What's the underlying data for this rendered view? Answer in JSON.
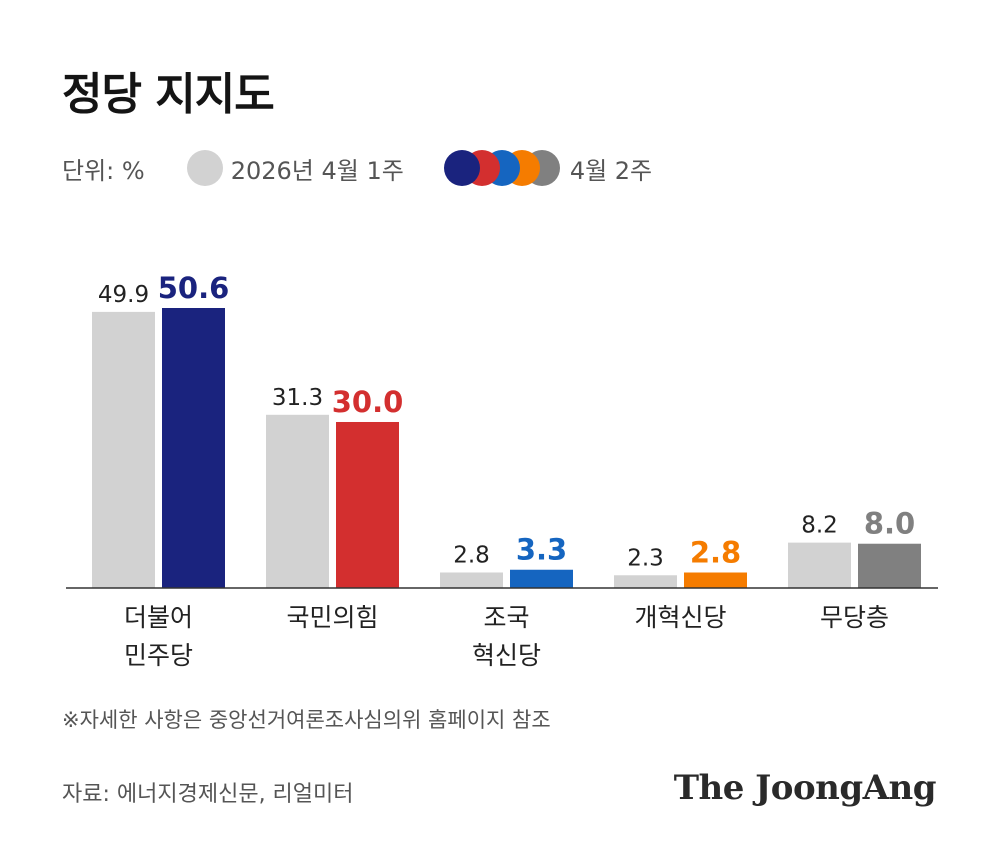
{
  "title": "정당 지지도",
  "legend": {
    "unit": "단위: %",
    "previous_label": "2026년 4월 1주",
    "current_label": "4월 2주",
    "current_dot_colors": [
      "#1a237e",
      "#d32f2f",
      "#1565c0",
      "#f57c00",
      "#808080"
    ]
  },
  "chart_data": {
    "type": "bar",
    "categories": [
      [
        "더불어",
        "민주당"
      ],
      [
        "국민의힘"
      ],
      [
        "조국",
        "혁신당"
      ],
      [
        "개혁신당"
      ],
      [
        "무당층"
      ]
    ],
    "series": [
      {
        "name": "2026년 4월 1주",
        "values": [
          49.9,
          31.3,
          2.8,
          2.3,
          8.2
        ],
        "color": "#d2d2d2"
      },
      {
        "name": "4월 2주",
        "values": [
          50.6,
          30.0,
          3.3,
          2.8,
          8.0
        ],
        "colors": [
          "#1a237e",
          "#d32f2f",
          "#1565c0",
          "#f57c00",
          "#808080"
        ]
      }
    ],
    "ylim": [
      0,
      50.6
    ],
    "grid": false,
    "legend_position": "top-left"
  },
  "note": "※자세한 사항은 중앙선거여론조사심의위 홈페이지 참조",
  "source": "자료: 에너지경제신문, 리얼미터",
  "brand": "The JoongAng"
}
